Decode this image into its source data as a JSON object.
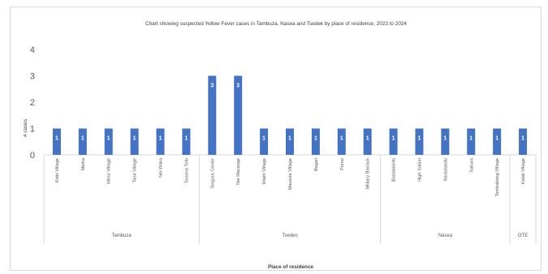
{
  "chart_data": {
    "type": "bar",
    "title": "Chart showing suspected Yellow Fever cases in Tambuza, Nasea and Tsedek by place of residence, 2023 to 2024",
    "xlabel": "Place of residence",
    "ylabel": "# cases",
    "ylim": [
      0,
      4
    ],
    "yticks": [
      "0",
      "1",
      "2",
      "3",
      "4"
    ],
    "grid": false,
    "bar_color": "#4472c4",
    "categories": [
      "Kidis Village",
      "Merka",
      "Mimo Village",
      "Tanir Village",
      "Nei Waka",
      "Sesena Tofo",
      "Singura Center",
      "Nei Macange",
      "Watin Village",
      "Macaste Village",
      "Begari",
      "Poroo",
      "Military Barrack",
      "Boostwords",
      "High Salam",
      "Narastands",
      "Sakura",
      "Tombabang Village",
      "Kalak Village"
    ],
    "values": [
      1,
      1,
      1,
      1,
      1,
      1,
      3,
      3,
      1,
      1,
      1,
      1,
      1,
      1,
      1,
      1,
      1,
      1,
      1
    ],
    "groups": [
      {
        "name": "Tambuza",
        "count": 6
      },
      {
        "name": "Tsedeo",
        "count": 7
      },
      {
        "name": "Nasea",
        "count": 5
      },
      {
        "name": "OTE",
        "count": 1
      }
    ]
  }
}
